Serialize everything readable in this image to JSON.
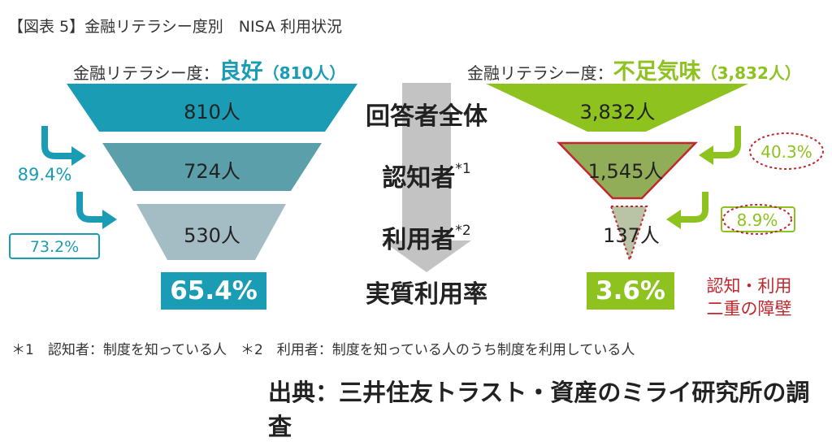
{
  "title": "【図表 5】金融リテラシー度別　NISA 利用状況",
  "left": {
    "header_prefix": "金融リテラシー度：",
    "header_label": "良好",
    "header_count": "（810人）",
    "levels": [
      "810人",
      "724人",
      "530人"
    ],
    "pct1": "89.4%",
    "pct2": "73.2%",
    "rate": "65.4%",
    "accent": "#1a9cb4"
  },
  "right": {
    "header_prefix": "金融リテラシー度：",
    "header_label": "不足気味",
    "header_count": "（3,832人）",
    "levels": [
      "3,832人",
      "1,545人",
      "137人"
    ],
    "pct1": "40.3%",
    "pct2": "8.9%",
    "rate": "3.6%",
    "accent": "#8dc21f"
  },
  "center": {
    "row1": "回答者全体",
    "row2": "認知者",
    "row2_sup": "*1",
    "row3": "利用者",
    "row3_sup": "*2",
    "row4": "実質利用率"
  },
  "barrier": {
    "line1": "認知・利用",
    "line2": "二重の障壁"
  },
  "footnote": "＊1　認知者：制度を知っている人　＊2　利用者：制度を知っている人のうち制度を利用している人",
  "source": "出典：三井住友トラスト・資産のミライ研究所の調査"
}
